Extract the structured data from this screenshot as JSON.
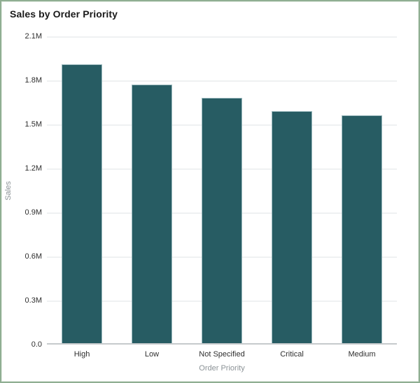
{
  "title": "Sales by Order Priority",
  "chart_data": {
    "type": "bar",
    "title": "Sales by Order Priority",
    "xlabel": "Order Priority",
    "ylabel": "Sales",
    "categories": [
      "High",
      "Low",
      "Not Specified",
      "Critical",
      "Medium"
    ],
    "values": [
      1.9,
      1.76,
      1.67,
      1.58,
      1.55
    ],
    "unit": "millions",
    "ylim": [
      0,
      2.1
    ],
    "y_tick_step": 0.3,
    "y_ticks": [
      {
        "value": 2.1,
        "label": "2.1M"
      },
      {
        "value": 1.8,
        "label": "1.8M"
      },
      {
        "value": 1.5,
        "label": "1.5M"
      },
      {
        "value": 1.2,
        "label": "1.2M"
      },
      {
        "value": 0.9,
        "label": "0.9M"
      },
      {
        "value": 0.6,
        "label": "0.6M"
      },
      {
        "value": 0.3,
        "label": "0.3M"
      },
      {
        "value": 0.0,
        "label": "0.0"
      }
    ],
    "grid": true,
    "legend": "none",
    "colors": {
      "bar_fill": "#275c63",
      "bar_edge": "#9dbbbf",
      "gridline": "#eff1f2",
      "axis_line": "#c6cacc",
      "tick_label": "#2e2e2e",
      "axis_title": "#8b9296",
      "chart_title": "#1a1a1a",
      "frame_border": "#90ae92",
      "background": "#ffffff"
    }
  }
}
